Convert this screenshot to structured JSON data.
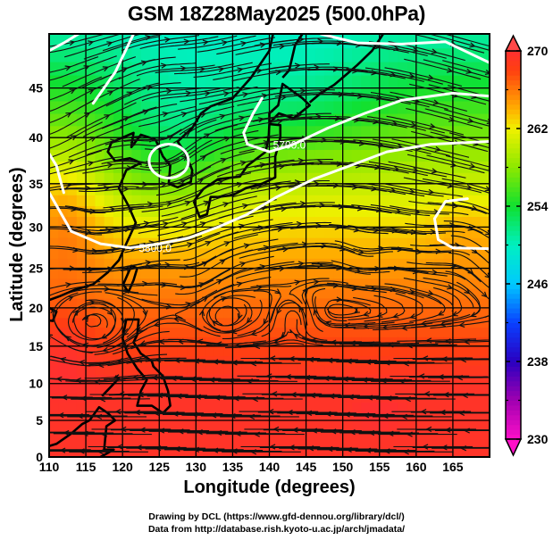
{
  "title": "GSM 18Z28May2025 (500.0hPa)",
  "credits": [
    "Drawing by DCL (https://www.gfd-dennou.org/library/dcl/)",
    "Data from http://database.rish.kyoto-u.ac.jp/arch/jmadata/"
  ],
  "chart_data": {
    "type": "heatmap",
    "title": "GSM 18Z28May2025 (500.0hPa)",
    "xlabel": "Longitude (degrees)",
    "ylabel": "Latitude  (degrees)",
    "xlim": [
      110,
      170
    ],
    "ylim": [
      0,
      50
    ],
    "x_ticks": [
      110,
      115,
      120,
      125,
      130,
      135,
      140,
      145,
      150,
      155,
      160,
      165
    ],
    "y_ticks": [
      0,
      5,
      10,
      15,
      20,
      25,
      30,
      35,
      40,
      45
    ],
    "grid": true,
    "projection": "mercator",
    "shaded_variable": "temperature",
    "colorbar": {
      "range": [
        230,
        270
      ],
      "tick_labels": [
        230,
        238,
        246,
        254,
        262,
        270
      ],
      "minor_ticks": [
        234,
        242,
        250,
        258,
        266
      ],
      "extend": "both",
      "placement": "right",
      "colors": [
        "#ff10c8",
        "#a000b0",
        "#2a00c0",
        "#0a40ff",
        "#00c8ff",
        "#00f0c0",
        "#10e030",
        "#8ce800",
        "#f0f000",
        "#ffb000",
        "#ff4010",
        "#ff3030"
      ]
    },
    "contours": {
      "variable": "geopotential height",
      "color": "#ffffff",
      "labels": [
        "5700.0",
        "5800.0"
      ]
    },
    "overlays": [
      "streamlines",
      "coastlines"
    ],
    "features": [
      {
        "name": "closed low",
        "lon": 126,
        "lat": 37.5
      },
      {
        "name": "anticyclone",
        "lon": 167,
        "lat": 30
      },
      {
        "name": "cyclonic circulation",
        "lon": 153,
        "lat": 27
      },
      {
        "name": "warm core",
        "lon": 154,
        "lat": 6
      }
    ]
  },
  "axes": {
    "xlabel": "Longitude (degrees)",
    "ylabel": "Latitude  (degrees)"
  }
}
